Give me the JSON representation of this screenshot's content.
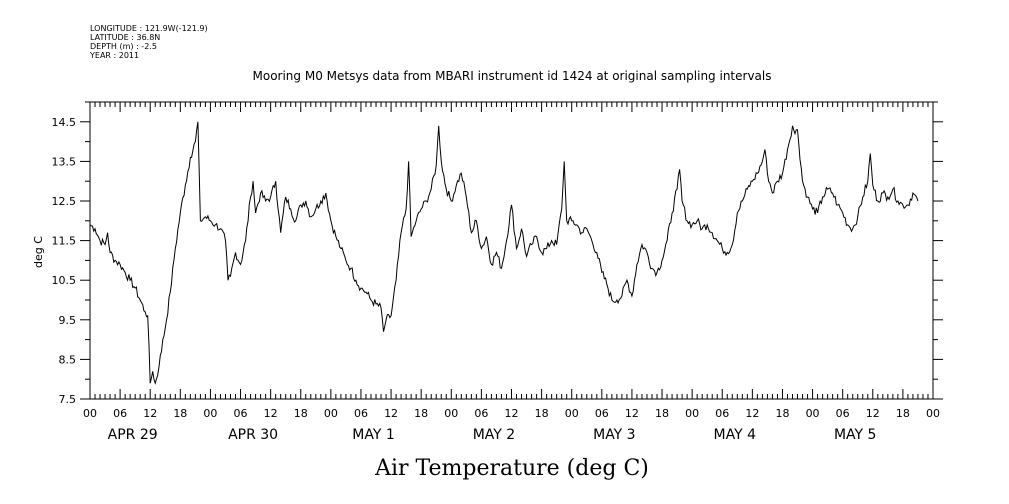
{
  "header": {
    "longitude": "LONGITUDE : 121.9W(-121.9)",
    "latitude": "LATITUDE : 36.8N",
    "depth": "DEPTH (m) : -2.5",
    "year": "YEAR : 2011"
  },
  "chart_data": {
    "type": "line",
    "title": "Mooring M0 Metsys data from MBARI instrument id 1424 at original sampling intervals",
    "xlabel": "Air Temperature (deg C)",
    "ylabel": "deg C",
    "ylim": [
      7.5,
      15.0
    ],
    "yticks": [
      "7.5",
      "8.5",
      "9.5",
      "10.5",
      "11.5",
      "12.5",
      "13.5",
      "14.5"
    ],
    "xlim_hours": [
      0,
      168
    ],
    "hour_tick_labels": [
      "00",
      "06",
      "12",
      "18"
    ],
    "day_labels": [
      "APR 29",
      "APR 30",
      "MAY 1",
      "MAY 2",
      "MAY 3",
      "MAY 4",
      "MAY 5"
    ],
    "grid": false,
    "series": [
      {
        "color": "#000000",
        "points": [
          [
            0,
            11.9
          ],
          [
            1,
            11.8
          ],
          [
            2,
            11.5
          ],
          [
            3,
            11.4
          ],
          [
            3.5,
            11.7
          ],
          [
            4,
            11.2
          ],
          [
            5,
            11.0
          ],
          [
            6,
            10.9
          ],
          [
            7,
            10.7
          ],
          [
            8,
            10.5
          ],
          [
            9,
            10.3
          ],
          [
            10,
            10.0
          ],
          [
            11,
            9.7
          ],
          [
            11.5,
            9.6
          ],
          [
            12,
            7.9
          ],
          [
            12.5,
            8.2
          ],
          [
            13,
            7.9
          ],
          [
            13.5,
            8.1
          ],
          [
            14,
            8.6
          ],
          [
            15,
            9.3
          ],
          [
            16,
            10.2
          ],
          [
            17,
            11.3
          ],
          [
            18,
            12.2
          ],
          [
            19,
            12.9
          ],
          [
            20,
            13.6
          ],
          [
            21,
            14.0
          ],
          [
            21.5,
            14.5
          ],
          [
            22,
            12.0
          ],
          [
            23,
            12.1
          ],
          [
            24,
            12.0
          ],
          [
            25,
            11.9
          ],
          [
            26,
            11.8
          ],
          [
            27,
            11.5
          ],
          [
            27.5,
            10.5
          ],
          [
            28,
            10.6
          ],
          [
            29,
            11.2
          ],
          [
            30,
            10.9
          ],
          [
            31,
            11.5
          ],
          [
            32,
            12.6
          ],
          [
            32.5,
            13.0
          ],
          [
            33,
            12.2
          ],
          [
            34,
            12.7
          ],
          [
            35,
            12.5
          ],
          [
            36,
            12.6
          ],
          [
            37,
            13.0
          ],
          [
            38,
            11.7
          ],
          [
            39,
            12.6
          ],
          [
            40,
            12.3
          ],
          [
            41,
            12.0
          ],
          [
            42,
            12.4
          ],
          [
            43,
            12.5
          ],
          [
            44,
            12.1
          ],
          [
            45,
            12.3
          ],
          [
            46,
            12.5
          ],
          [
            47,
            12.7
          ],
          [
            48,
            12.0
          ],
          [
            49,
            11.6
          ],
          [
            50,
            11.3
          ],
          [
            51,
            11.0
          ],
          [
            52,
            10.8
          ],
          [
            53,
            10.5
          ],
          [
            54,
            10.3
          ],
          [
            55,
            10.2
          ],
          [
            56,
            10.0
          ],
          [
            57,
            9.9
          ],
          [
            58,
            9.8
          ],
          [
            58.5,
            9.2
          ],
          [
            59,
            9.5
          ],
          [
            60,
            9.6
          ],
          [
            61,
            10.5
          ],
          [
            62,
            11.7
          ],
          [
            63,
            12.3
          ],
          [
            63.5,
            13.5
          ],
          [
            64,
            11.6
          ],
          [
            65,
            12.0
          ],
          [
            66,
            12.3
          ],
          [
            67,
            12.5
          ],
          [
            68,
            12.8
          ],
          [
            69,
            13.4
          ],
          [
            69.5,
            14.4
          ],
          [
            70,
            13.5
          ],
          [
            71,
            12.8
          ],
          [
            72,
            12.5
          ],
          [
            73,
            12.9
          ],
          [
            74,
            13.2
          ],
          [
            75,
            12.6
          ],
          [
            76,
            11.7
          ],
          [
            77,
            12.0
          ],
          [
            78,
            11.3
          ],
          [
            79,
            11.6
          ],
          [
            80,
            10.9
          ],
          [
            81,
            11.2
          ],
          [
            82,
            10.8
          ],
          [
            83,
            11.5
          ],
          [
            84,
            12.4
          ],
          [
            85,
            11.3
          ],
          [
            86,
            11.8
          ],
          [
            87,
            11.1
          ],
          [
            88,
            11.4
          ],
          [
            89,
            11.6
          ],
          [
            90,
            11.2
          ],
          [
            91,
            11.3
          ],
          [
            92,
            11.5
          ],
          [
            93,
            11.4
          ],
          [
            94,
            12.3
          ],
          [
            94.5,
            13.5
          ],
          [
            95,
            12.0
          ],
          [
            96,
            12.0
          ],
          [
            97,
            11.9
          ],
          [
            98,
            11.7
          ],
          [
            99,
            11.8
          ],
          [
            100,
            11.5
          ],
          [
            101,
            11.2
          ],
          [
            102,
            10.7
          ],
          [
            103,
            10.4
          ],
          [
            104,
            10.0
          ],
          [
            105,
            10.0
          ],
          [
            106,
            10.1
          ],
          [
            107,
            10.5
          ],
          [
            108,
            10.1
          ],
          [
            109,
            10.9
          ],
          [
            110,
            11.4
          ],
          [
            111,
            11.2
          ],
          [
            112,
            10.8
          ],
          [
            113,
            10.7
          ],
          [
            114,
            11.0
          ],
          [
            115,
            11.5
          ],
          [
            116,
            12.2
          ],
          [
            117,
            12.8
          ],
          [
            117.5,
            13.3
          ],
          [
            118,
            12.5
          ],
          [
            119,
            12.0
          ],
          [
            120,
            11.9
          ],
          [
            121,
            12.0
          ],
          [
            122,
            11.8
          ],
          [
            123,
            11.9
          ],
          [
            124,
            11.7
          ],
          [
            125,
            11.5
          ],
          [
            126,
            11.3
          ],
          [
            127,
            11.2
          ],
          [
            128,
            11.4
          ],
          [
            129,
            12.2
          ],
          [
            130,
            12.5
          ],
          [
            131,
            12.8
          ],
          [
            132,
            13.0
          ],
          [
            133,
            13.2
          ],
          [
            134,
            13.5
          ],
          [
            134.5,
            13.8
          ],
          [
            135,
            13.2
          ],
          [
            136,
            12.7
          ],
          [
            137,
            13.0
          ],
          [
            138,
            13.2
          ],
          [
            139,
            13.8
          ],
          [
            140,
            14.4
          ],
          [
            140.5,
            14.2
          ],
          [
            141,
            14.3
          ],
          [
            142,
            13.0
          ],
          [
            143,
            12.6
          ],
          [
            144,
            12.3
          ],
          [
            145,
            12.2
          ],
          [
            146,
            12.6
          ],
          [
            147,
            12.8
          ],
          [
            148,
            12.7
          ],
          [
            149,
            12.4
          ],
          [
            150,
            12.2
          ],
          [
            151,
            11.9
          ],
          [
            152,
            11.8
          ],
          [
            153,
            12.1
          ],
          [
            154,
            12.6
          ],
          [
            155,
            13.0
          ],
          [
            155.5,
            13.7
          ],
          [
            156,
            12.9
          ],
          [
            157,
            12.5
          ],
          [
            158,
            12.7
          ],
          [
            159,
            12.6
          ],
          [
            160,
            12.8
          ],
          [
            161,
            12.5
          ],
          [
            162,
            12.4
          ],
          [
            163,
            12.4
          ],
          [
            164,
            12.7
          ],
          [
            165,
            12.5
          ]
        ]
      }
    ]
  }
}
